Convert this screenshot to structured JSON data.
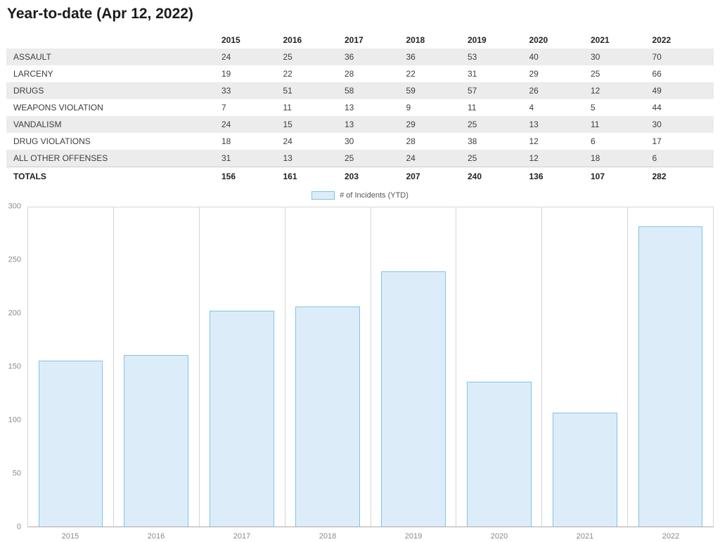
{
  "page": {
    "title": "Year-to-date (Apr 12, 2022)"
  },
  "table": {
    "columns": [
      "2015",
      "2016",
      "2017",
      "2018",
      "2019",
      "2020",
      "2021",
      "2022"
    ],
    "rows": [
      {
        "label": "ASSAULT",
        "values": [
          24,
          25,
          36,
          36,
          53,
          40,
          30,
          70
        ]
      },
      {
        "label": "LARCENY",
        "values": [
          19,
          22,
          28,
          22,
          31,
          29,
          25,
          66
        ]
      },
      {
        "label": "DRUGS",
        "values": [
          33,
          51,
          58,
          59,
          57,
          26,
          12,
          49
        ]
      },
      {
        "label": "WEAPONS VIOLATION",
        "values": [
          7,
          11,
          13,
          9,
          11,
          4,
          5,
          44
        ]
      },
      {
        "label": "VANDALISM",
        "values": [
          24,
          15,
          13,
          29,
          25,
          13,
          11,
          30
        ]
      },
      {
        "label": "DRUG VIOLATIONS",
        "values": [
          18,
          24,
          30,
          28,
          38,
          12,
          6,
          17
        ]
      },
      {
        "label": "ALL OTHER OFFENSES",
        "values": [
          31,
          13,
          25,
          24,
          25,
          12,
          18,
          6
        ]
      }
    ],
    "totals": {
      "label": "TOTALS",
      "values": [
        156,
        161,
        203,
        207,
        240,
        136,
        107,
        282
      ]
    }
  },
  "chart_data": {
    "type": "bar",
    "title": "",
    "legend": "# of Incidents (YTD)",
    "categories": [
      "2015",
      "2016",
      "2017",
      "2018",
      "2019",
      "2020",
      "2021",
      "2022"
    ],
    "values": [
      156,
      161,
      203,
      207,
      240,
      136,
      107,
      282
    ],
    "xlabel": "",
    "ylabel": "",
    "ylim": [
      0,
      300
    ],
    "yticks": [
      0,
      50,
      100,
      150,
      200,
      250,
      300
    ],
    "grid": "vertical",
    "legend_position": "top-center",
    "bar_fill": "#dcedf9",
    "bar_border": "#82c3e6"
  }
}
